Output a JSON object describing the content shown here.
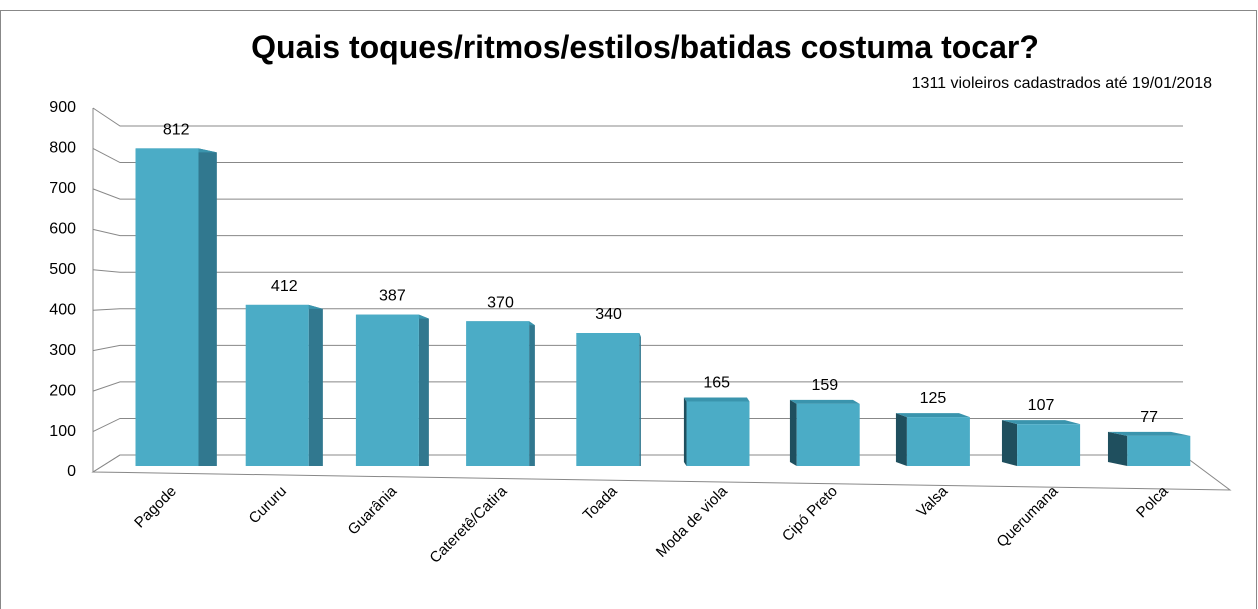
{
  "chart_data": {
    "type": "bar3d",
    "title": "Quais toques/ritmos/estilos/batidas costuma tocar?",
    "subtitle": "1311 violeiros cadastrados até 19/01/2018",
    "categories": [
      "Pagode",
      "Cururu",
      "Guarânia",
      "Cateretê/Catira",
      "Toada",
      "Moda de viola",
      "Cipó Preto",
      "Valsa",
      "Querumana",
      "Polca"
    ],
    "values": [
      812,
      412,
      387,
      370,
      340,
      165,
      159,
      125,
      107,
      77
    ],
    "color": "#4bacc6",
    "ylim": [
      0,
      900
    ],
    "yticks": [
      0,
      100,
      200,
      300,
      400,
      500,
      600,
      700,
      800,
      900
    ],
    "grid": true
  }
}
